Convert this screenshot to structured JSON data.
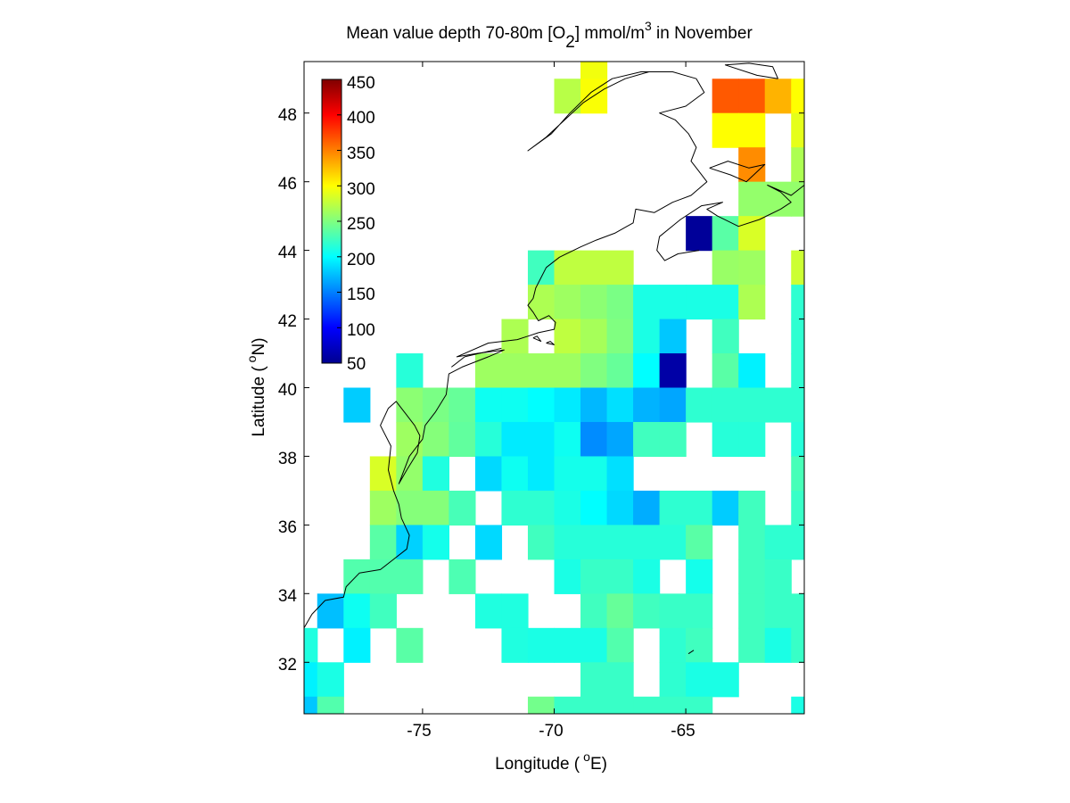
{
  "chart_data": {
    "type": "heatmap",
    "title_main": "Mean value depth 70-80m [O",
    "title_sub": "2",
    "title_mid": "] mmol/m",
    "title_sup": "3",
    "title_end": " in November",
    "xlabel_main": "Longitude (",
    "xlabel_sup": "o",
    "xlabel_end": "E)",
    "ylabel_main": "Latitude (",
    "ylabel_sup": "o",
    "ylabel_end": "N)",
    "xlim": [
      -79.5,
      -60.5
    ],
    "ylim": [
      30.5,
      49.5
    ],
    "xticks": [
      -75,
      -70,
      -65
    ],
    "xtick_labels": [
      "-75",
      "-70",
      "-65"
    ],
    "yticks": [
      32,
      34,
      36,
      38,
      40,
      42,
      44,
      46,
      48
    ],
    "ytick_labels": [
      "32",
      "34",
      "36",
      "38",
      "40",
      "42",
      "44",
      "46",
      "48"
    ],
    "colorbar": {
      "range": [
        50,
        450
      ],
      "ticks": [
        "450",
        "400",
        "350",
        "300",
        "250",
        "200",
        "150",
        "100",
        "50"
      ],
      "colormap": "jet",
      "placement": "top-left inset"
    },
    "cell_size_deg": 1,
    "cells": [
      [
        -68.5,
        49.5,
        295
      ],
      [
        -69.5,
        48.5,
        272
      ],
      [
        -68.5,
        48.5,
        298
      ],
      [
        -63.5,
        48.5,
        365
      ],
      [
        -62.5,
        48.5,
        365
      ],
      [
        -61.5,
        48.5,
        330
      ],
      [
        -60.5,
        48.5,
        300
      ],
      [
        -63.5,
        47.5,
        300
      ],
      [
        -62.5,
        47.5,
        300
      ],
      [
        -60.5,
        47.5,
        290
      ],
      [
        -62.5,
        46.5,
        345
      ],
      [
        -60.5,
        46.5,
        268
      ],
      [
        -62.5,
        45.5,
        258
      ],
      [
        -61.5,
        45.5,
        258
      ],
      [
        -60.5,
        45.5,
        258
      ],
      [
        -64.5,
        44.5,
        60
      ],
      [
        -63.5,
        44.5,
        235
      ],
      [
        -62.5,
        44.5,
        285
      ],
      [
        -70.5,
        43.5,
        225
      ],
      [
        -69.5,
        43.5,
        275
      ],
      [
        -68.5,
        43.5,
        275
      ],
      [
        -67.5,
        43.5,
        275
      ],
      [
        -63.5,
        43.5,
        260
      ],
      [
        -62.5,
        43.5,
        262
      ],
      [
        -60.5,
        43.5,
        280
      ],
      [
        -70.5,
        42.5,
        268
      ],
      [
        -69.5,
        42.5,
        262
      ],
      [
        -68.5,
        42.5,
        255
      ],
      [
        -67.5,
        42.5,
        248
      ],
      [
        -66.5,
        42.5,
        210
      ],
      [
        -65.5,
        42.5,
        210
      ],
      [
        -64.5,
        42.5,
        210
      ],
      [
        -63.5,
        42.5,
        210
      ],
      [
        -62.5,
        42.5,
        268
      ],
      [
        -60.5,
        42.5,
        218
      ],
      [
        -71.5,
        41.5,
        268
      ],
      [
        -69.5,
        41.5,
        275
      ],
      [
        -68.5,
        41.5,
        265
      ],
      [
        -67.5,
        41.5,
        250
      ],
      [
        -66.5,
        41.5,
        210
      ],
      [
        -65.5,
        41.5,
        178
      ],
      [
        -63.5,
        41.5,
        225
      ],
      [
        -60.5,
        41.5,
        218
      ],
      [
        -75.5,
        40.5,
        215
      ],
      [
        -72.5,
        40.5,
        262
      ],
      [
        -71.5,
        40.5,
        262
      ],
      [
        -70.5,
        40.5,
        262
      ],
      [
        -69.5,
        40.5,
        262
      ],
      [
        -68.5,
        40.5,
        250
      ],
      [
        -67.5,
        40.5,
        240
      ],
      [
        -66.5,
        40.5,
        200
      ],
      [
        -65.5,
        40.5,
        65
      ],
      [
        -63.5,
        40.5,
        235
      ],
      [
        -62.5,
        40.5,
        195
      ],
      [
        -60.5,
        40.5,
        218
      ],
      [
        -77.5,
        39.5,
        180
      ],
      [
        -75.5,
        39.5,
        255
      ],
      [
        -74.5,
        39.5,
        248
      ],
      [
        -73.5,
        39.5,
        240
      ],
      [
        -72.5,
        39.5,
        205
      ],
      [
        -71.5,
        39.5,
        205
      ],
      [
        -70.5,
        39.5,
        200
      ],
      [
        -69.5,
        39.5,
        192
      ],
      [
        -68.5,
        39.5,
        172
      ],
      [
        -67.5,
        39.5,
        188
      ],
      [
        -66.5,
        39.5,
        170
      ],
      [
        -65.5,
        39.5,
        165
      ],
      [
        -64.5,
        39.5,
        218
      ],
      [
        -63.5,
        39.5,
        218
      ],
      [
        -62.5,
        39.5,
        218
      ],
      [
        -61.5,
        39.5,
        218
      ],
      [
        -60.5,
        39.5,
        218
      ],
      [
        -75.5,
        38.5,
        262
      ],
      [
        -74.5,
        38.5,
        252
      ],
      [
        -73.5,
        38.5,
        238
      ],
      [
        -72.5,
        38.5,
        215
      ],
      [
        -71.5,
        38.5,
        192
      ],
      [
        -70.5,
        38.5,
        192
      ],
      [
        -69.5,
        38.5,
        205
      ],
      [
        -68.5,
        38.5,
        155
      ],
      [
        -67.5,
        38.5,
        165
      ],
      [
        -66.5,
        38.5,
        225
      ],
      [
        -65.5,
        38.5,
        225
      ],
      [
        -63.5,
        38.5,
        215
      ],
      [
        -62.5,
        38.5,
        215
      ],
      [
        -60.5,
        38.5,
        215
      ],
      [
        -76.5,
        37.5,
        285
      ],
      [
        -75.5,
        37.5,
        258
      ],
      [
        -74.5,
        37.5,
        212
      ],
      [
        -72.5,
        37.5,
        185
      ],
      [
        -71.5,
        37.5,
        205
      ],
      [
        -70.5,
        37.5,
        192
      ],
      [
        -69.5,
        37.5,
        208
      ],
      [
        -68.5,
        37.5,
        208
      ],
      [
        -67.5,
        37.5,
        188
      ],
      [
        -60.5,
        37.5,
        228
      ],
      [
        -76.5,
        36.5,
        262
      ],
      [
        -75.5,
        36.5,
        252
      ],
      [
        -74.5,
        36.5,
        252
      ],
      [
        -73.5,
        36.5,
        228
      ],
      [
        -71.5,
        36.5,
        218
      ],
      [
        -70.5,
        36.5,
        218
      ],
      [
        -69.5,
        36.5,
        210
      ],
      [
        -68.5,
        36.5,
        200
      ],
      [
        -67.5,
        36.5,
        185
      ],
      [
        -66.5,
        36.5,
        168
      ],
      [
        -65.5,
        36.5,
        218
      ],
      [
        -64.5,
        36.5,
        218
      ],
      [
        -63.5,
        36.5,
        180
      ],
      [
        -62.5,
        36.5,
        225
      ],
      [
        -60.5,
        36.5,
        222
      ],
      [
        -76.5,
        35.5,
        235
      ],
      [
        -75.5,
        35.5,
        182
      ],
      [
        -74.5,
        35.5,
        208
      ],
      [
        -72.5,
        35.5,
        185
      ],
      [
        -70.5,
        35.5,
        225
      ],
      [
        -69.5,
        35.5,
        215
      ],
      [
        -68.5,
        35.5,
        215
      ],
      [
        -67.5,
        35.5,
        215
      ],
      [
        -66.5,
        35.5,
        215
      ],
      [
        -65.5,
        35.5,
        215
      ],
      [
        -64.5,
        35.5,
        235
      ],
      [
        -62.5,
        35.5,
        225
      ],
      [
        -61.5,
        35.5,
        218
      ],
      [
        -60.5,
        35.5,
        218
      ],
      [
        -77.5,
        34.5,
        232
      ],
      [
        -76.5,
        34.5,
        232
      ],
      [
        -75.5,
        34.5,
        232
      ],
      [
        -73.5,
        34.5,
        230
      ],
      [
        -69.5,
        34.5,
        210
      ],
      [
        -68.5,
        34.5,
        222
      ],
      [
        -67.5,
        34.5,
        222
      ],
      [
        -66.5,
        34.5,
        210
      ],
      [
        -64.5,
        34.5,
        208
      ],
      [
        -62.5,
        34.5,
        225
      ],
      [
        -61.5,
        34.5,
        222
      ],
      [
        -78.5,
        33.5,
        175
      ],
      [
        -77.5,
        33.5,
        205
      ],
      [
        -76.5,
        33.5,
        225
      ],
      [
        -72.5,
        33.5,
        212
      ],
      [
        -71.5,
        33.5,
        212
      ],
      [
        -68.5,
        33.5,
        225
      ],
      [
        -67.5,
        33.5,
        240
      ],
      [
        -66.5,
        33.5,
        225
      ],
      [
        -65.5,
        33.5,
        222
      ],
      [
        -64.5,
        33.5,
        222
      ],
      [
        -62.5,
        33.5,
        225
      ],
      [
        -61.5,
        33.5,
        222
      ],
      [
        -60.5,
        33.5,
        222
      ],
      [
        -79.5,
        32.5,
        212
      ],
      [
        -77.5,
        32.5,
        195
      ],
      [
        -75.5,
        32.5,
        235
      ],
      [
        -71.5,
        32.5,
        212
      ],
      [
        -70.5,
        32.5,
        210
      ],
      [
        -69.5,
        32.5,
        210
      ],
      [
        -68.5,
        32.5,
        210
      ],
      [
        -67.5,
        32.5,
        232
      ],
      [
        -65.5,
        32.5,
        218
      ],
      [
        -64.5,
        32.5,
        225
      ],
      [
        -62.5,
        32.5,
        225
      ],
      [
        -61.5,
        32.5,
        210
      ],
      [
        -60.5,
        32.5,
        222
      ],
      [
        -79.5,
        31.5,
        195
      ],
      [
        -78.5,
        31.5,
        210
      ],
      [
        -68.5,
        31.5,
        222
      ],
      [
        -67.5,
        31.5,
        222
      ],
      [
        -65.5,
        31.5,
        218
      ],
      [
        -64.5,
        31.5,
        210
      ],
      [
        -63.5,
        31.5,
        210
      ],
      [
        -79.5,
        30.5,
        178
      ],
      [
        -78.5,
        30.5,
        232
      ],
      [
        -70.5,
        30.5,
        245
      ],
      [
        -69.5,
        30.5,
        222
      ],
      [
        -68.5,
        30.5,
        222
      ],
      [
        -67.5,
        30.5,
        222
      ],
      [
        -66.5,
        30.5,
        222
      ],
      [
        -65.5,
        30.5,
        222
      ],
      [
        -64.5,
        30.5,
        222
      ],
      [
        -60.5,
        30.5,
        210
      ]
    ],
    "coastline": [
      [
        [
          -79.5,
          33.0
        ],
        [
          -79.2,
          33.4
        ],
        [
          -78.7,
          33.8
        ],
        [
          -78.0,
          33.9
        ],
        [
          -77.9,
          34.2
        ],
        [
          -77.4,
          34.6
        ],
        [
          -76.6,
          34.7
        ],
        [
          -76.1,
          35.0
        ],
        [
          -75.6,
          35.3
        ],
        [
          -75.5,
          35.7
        ],
        [
          -75.8,
          36.2
        ],
        [
          -75.9,
          36.6
        ],
        [
          -76.1,
          37.0
        ],
        [
          -76.3,
          37.6
        ],
        [
          -76.2,
          38.3
        ],
        [
          -76.6,
          38.9
        ],
        [
          -76.3,
          39.4
        ],
        [
          -76.0,
          39.6
        ],
        [
          -75.6,
          39.2
        ],
        [
          -75.3,
          38.9
        ],
        [
          -75.1,
          38.6
        ],
        [
          -75.2,
          38.1
        ],
        [
          -75.6,
          37.6
        ],
        [
          -75.9,
          37.2
        ],
        [
          -75.5,
          38.0
        ],
        [
          -75.0,
          38.5
        ],
        [
          -74.9,
          38.9
        ],
        [
          -74.5,
          39.3
        ],
        [
          -74.1,
          39.8
        ],
        [
          -74.0,
          40.4
        ],
        [
          -73.5,
          40.6
        ],
        [
          -72.5,
          40.9
        ],
        [
          -71.9,
          41.1
        ],
        [
          -72.9,
          41.0
        ],
        [
          -73.7,
          40.9
        ],
        [
          -72.5,
          41.3
        ],
        [
          -71.4,
          41.4
        ],
        [
          -71.0,
          41.5
        ],
        [
          -70.6,
          41.6
        ],
        [
          -70.0,
          41.7
        ],
        [
          -69.95,
          41.9
        ],
        [
          -70.2,
          42.1
        ],
        [
          -70.6,
          41.95
        ],
        [
          -70.8,
          42.2
        ],
        [
          -71.0,
          42.4
        ],
        [
          -70.8,
          42.6
        ],
        [
          -70.7,
          42.9
        ],
        [
          -70.3,
          43.5
        ],
        [
          -69.8,
          43.8
        ],
        [
          -69.0,
          44.1
        ],
        [
          -68.4,
          44.3
        ],
        [
          -67.7,
          44.5
        ],
        [
          -67.0,
          44.8
        ],
        [
          -66.9,
          45.2
        ],
        [
          -66.2,
          45.1
        ],
        [
          -65.5,
          45.4
        ],
        [
          -64.8,
          45.6
        ],
        [
          -64.2,
          46.0
        ],
        [
          -64.5,
          46.3
        ],
        [
          -64.8,
          46.6
        ],
        [
          -64.6,
          47.0
        ],
        [
          -64.9,
          47.4
        ],
        [
          -65.4,
          47.8
        ],
        [
          -66.0,
          48.0
        ],
        [
          -65.0,
          48.2
        ],
        [
          -64.3,
          48.6
        ],
        [
          -64.6,
          49.0
        ],
        [
          -65.5,
          49.2
        ],
        [
          -66.7,
          49.2
        ],
        [
          -67.8,
          49.0
        ],
        [
          -68.6,
          48.6
        ],
        [
          -69.4,
          48.0
        ],
        [
          -70.1,
          47.4
        ],
        [
          -71.0,
          46.9
        ],
        [
          -70.3,
          47.3
        ],
        [
          -69.6,
          47.8
        ],
        [
          -68.9,
          48.3
        ],
        [
          -68.1,
          48.7
        ],
        [
          -67.3,
          49.0
        ],
        [
          -66.4,
          49.2
        ]
      ],
      [
        [
          -64.5,
          44.0
        ],
        [
          -65.3,
          43.9
        ],
        [
          -65.8,
          43.7
        ],
        [
          -66.1,
          44.0
        ],
        [
          -66.0,
          44.4
        ],
        [
          -65.2,
          44.9
        ],
        [
          -64.4,
          45.3
        ],
        [
          -63.6,
          45.4
        ],
        [
          -64.2,
          45.2
        ],
        [
          -63.8,
          45.0
        ],
        [
          -63.0,
          44.7
        ],
        [
          -62.2,
          44.9
        ],
        [
          -61.4,
          45.2
        ],
        [
          -61.0,
          45.4
        ],
        [
          -61.4,
          45.7
        ],
        [
          -61.9,
          45.9
        ],
        [
          -61.0,
          45.6
        ],
        [
          -60.5,
          45.9
        ]
      ],
      [
        [
          -64.1,
          46.4
        ],
        [
          -63.4,
          46.6
        ],
        [
          -62.6,
          46.4
        ],
        [
          -62.0,
          46.5
        ],
        [
          -62.7,
          46.0
        ],
        [
          -63.3,
          46.2
        ],
        [
          -64.1,
          46.4
        ]
      ],
      [
        [
          -61.5,
          49.0
        ],
        [
          -62.3,
          49.1
        ],
        [
          -63.5,
          49.4
        ],
        [
          -62.6,
          49.45
        ],
        [
          -61.7,
          49.35
        ],
        [
          -61.5,
          49.0
        ]
      ],
      [
        [
          -70.3,
          41.3
        ],
        [
          -70.0,
          41.25
        ],
        [
          -70.15,
          41.35
        ],
        [
          -70.3,
          41.3
        ]
      ],
      [
        [
          -70.8,
          41.45
        ],
        [
          -70.5,
          41.35
        ],
        [
          -70.65,
          41.5
        ],
        [
          -70.8,
          41.45
        ]
      ],
      [
        [
          -72.0,
          41.15
        ],
        [
          -73.4,
          40.9
        ],
        [
          -73.9,
          40.6
        ]
      ],
      [
        [
          -64.9,
          32.25
        ],
        [
          -64.7,
          32.35
        ]
      ]
    ]
  }
}
